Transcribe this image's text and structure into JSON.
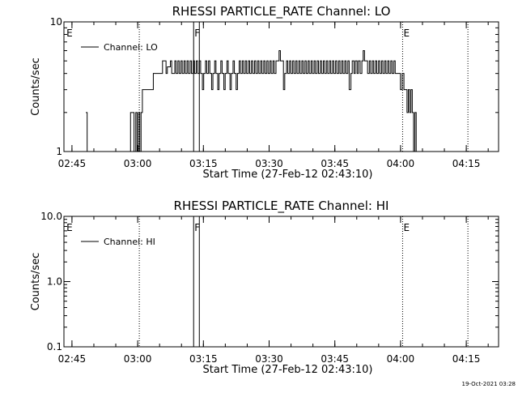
{
  "footer": {
    "timestamp": "19-Oct-2021 03:28"
  },
  "chart_data": [
    {
      "type": "line",
      "title": "RHESSI PARTICLE_RATE Channel: LO",
      "xlabel": "Start Time (27-Feb-12 02:43:10)",
      "ylabel": "Counts/sec",
      "yscale": "log",
      "ylim": [
        1,
        10
      ],
      "xlim_minutes": [
        0,
        99.2
      ],
      "x_ticks": [
        {
          "t": 1.83,
          "label": "02:45"
        },
        {
          "t": 16.83,
          "label": "03:00"
        },
        {
          "t": 31.83,
          "label": "03:15"
        },
        {
          "t": 46.83,
          "label": "03:30"
        },
        {
          "t": 61.83,
          "label": "03:45"
        },
        {
          "t": 76.83,
          "label": "04:00"
        },
        {
          "t": 91.83,
          "label": "04:15"
        }
      ],
      "y_ticks": [
        {
          "v": 1,
          "label": "1"
        },
        {
          "v": 10,
          "label": "10"
        }
      ],
      "legend": {
        "position": "top-left",
        "label": "Channel: LO"
      },
      "markers": [
        {
          "t": 0.4,
          "label": "E",
          "style": "none"
        },
        {
          "t": 17.2,
          "label": "",
          "style": "dotted"
        },
        {
          "t": 29.6,
          "label": "F",
          "style": "solid"
        },
        {
          "t": 30.9,
          "label": "",
          "style": "solid"
        },
        {
          "t": 77.3,
          "label": "E",
          "style": "dotted"
        },
        {
          "t": 92.2,
          "label": "",
          "style": "dotted"
        }
      ],
      "series": [
        {
          "name": "Channel: LO",
          "points": [
            [
              5.0,
              2.0
            ],
            [
              5.3,
              1.0
            ],
            [
              14.8,
              1.0
            ],
            [
              15.2,
              2.0
            ],
            [
              16.0,
              1.0
            ],
            [
              16.4,
              2.0
            ],
            [
              16.7,
              1.0
            ],
            [
              17.0,
              2.0
            ],
            [
              17.3,
              1.0
            ],
            [
              17.6,
              2.0
            ],
            [
              17.9,
              3.0
            ],
            [
              20.0,
              3.0
            ],
            [
              20.4,
              4.0
            ],
            [
              22.0,
              4.0
            ],
            [
              22.5,
              5.0
            ],
            [
              23.0,
              5.0
            ],
            [
              23.3,
              4.0
            ],
            [
              23.6,
              4.5
            ],
            [
              24.0,
              4.5
            ],
            [
              24.3,
              5.0
            ],
            [
              24.6,
              4.0
            ],
            [
              25.0,
              4.0
            ],
            [
              25.3,
              5.0
            ],
            [
              25.6,
              4.0
            ],
            [
              26.0,
              5.0
            ],
            [
              26.3,
              4.0
            ],
            [
              26.7,
              5.0
            ],
            [
              27.0,
              4.0
            ],
            [
              27.4,
              5.0
            ],
            [
              27.7,
              4.0
            ],
            [
              28.1,
              5.0
            ],
            [
              28.4,
              4.0
            ],
            [
              28.8,
              5.0
            ],
            [
              29.1,
              4.0
            ],
            [
              29.5,
              5.0
            ],
            [
              29.8,
              4.0
            ],
            [
              30.2,
              5.0
            ],
            [
              30.5,
              4.0
            ],
            [
              30.9,
              5.0
            ],
            [
              31.2,
              4.0
            ],
            [
              31.6,
              3.0
            ],
            [
              31.9,
              4.0
            ],
            [
              32.3,
              5.0
            ],
            [
              32.6,
              4.0
            ],
            [
              33.0,
              5.0
            ],
            [
              33.3,
              4.0
            ],
            [
              33.7,
              3.0
            ],
            [
              34.0,
              4.0
            ],
            [
              34.4,
              5.0
            ],
            [
              34.7,
              4.0
            ],
            [
              35.1,
              3.0
            ],
            [
              35.4,
              4.0
            ],
            [
              35.8,
              5.0
            ],
            [
              36.1,
              4.0
            ],
            [
              36.5,
              3.0
            ],
            [
              36.8,
              4.0
            ],
            [
              37.2,
              5.0
            ],
            [
              37.5,
              4.0
            ],
            [
              37.9,
              3.0
            ],
            [
              38.2,
              4.0
            ],
            [
              38.6,
              5.0
            ],
            [
              38.9,
              4.0
            ],
            [
              39.3,
              3.0
            ],
            [
              39.6,
              4.0
            ],
            [
              40.0,
              5.0
            ],
            [
              40.3,
              4.0
            ],
            [
              40.7,
              5.0
            ],
            [
              41.0,
              4.0
            ],
            [
              41.4,
              5.0
            ],
            [
              41.7,
              4.0
            ],
            [
              42.1,
              5.0
            ],
            [
              42.4,
              4.0
            ],
            [
              42.8,
              5.0
            ],
            [
              43.1,
              4.0
            ],
            [
              43.5,
              5.0
            ],
            [
              43.8,
              4.0
            ],
            [
              44.2,
              5.0
            ],
            [
              44.5,
              4.0
            ],
            [
              44.9,
              5.0
            ],
            [
              45.2,
              4.0
            ],
            [
              45.6,
              5.0
            ],
            [
              45.9,
              4.0
            ],
            [
              46.3,
              5.0
            ],
            [
              46.6,
              4.0
            ],
            [
              47.0,
              5.0
            ],
            [
              47.3,
              4.0
            ],
            [
              47.7,
              5.0
            ],
            [
              48.0,
              4.0
            ],
            [
              48.4,
              5.0
            ],
            [
              48.7,
              5.0
            ],
            [
              49.1,
              6.0
            ],
            [
              49.4,
              5.0
            ],
            [
              49.8,
              5.0
            ],
            [
              50.1,
              3.0
            ],
            [
              50.4,
              4.0
            ],
            [
              50.8,
              5.0
            ],
            [
              51.1,
              4.0
            ],
            [
              51.5,
              5.0
            ],
            [
              51.8,
              4.0
            ],
            [
              52.2,
              5.0
            ],
            [
              52.5,
              4.0
            ],
            [
              52.9,
              5.0
            ],
            [
              53.2,
              4.0
            ],
            [
              53.6,
              5.0
            ],
            [
              53.9,
              4.0
            ],
            [
              54.3,
              5.0
            ],
            [
              54.6,
              4.0
            ],
            [
              55.0,
              5.0
            ],
            [
              55.3,
              4.0
            ],
            [
              55.7,
              5.0
            ],
            [
              56.0,
              4.0
            ],
            [
              56.4,
              5.0
            ],
            [
              56.7,
              4.0
            ],
            [
              57.1,
              5.0
            ],
            [
              57.4,
              4.0
            ],
            [
              57.8,
              5.0
            ],
            [
              58.1,
              4.0
            ],
            [
              58.5,
              5.0
            ],
            [
              58.8,
              4.0
            ],
            [
              59.2,
              5.0
            ],
            [
              59.5,
              4.0
            ],
            [
              59.9,
              5.0
            ],
            [
              60.2,
              4.0
            ],
            [
              60.6,
              5.0
            ],
            [
              60.9,
              4.0
            ],
            [
              61.3,
              5.0
            ],
            [
              61.6,
              4.0
            ],
            [
              62.0,
              5.0
            ],
            [
              62.3,
              4.0
            ],
            [
              62.7,
              5.0
            ],
            [
              63.0,
              4.0
            ],
            [
              63.4,
              5.0
            ],
            [
              63.7,
              4.0
            ],
            [
              64.1,
              5.0
            ],
            [
              64.4,
              4.0
            ],
            [
              64.8,
              5.0
            ],
            [
              65.1,
              3.0
            ],
            [
              65.5,
              4.0
            ],
            [
              65.8,
              5.0
            ],
            [
              66.2,
              4.0
            ],
            [
              66.5,
              5.0
            ],
            [
              66.9,
              4.0
            ],
            [
              67.2,
              5.0
            ],
            [
              67.6,
              4.0
            ],
            [
              68.0,
              5.0
            ],
            [
              68.3,
              6.0
            ],
            [
              68.6,
              5.0
            ],
            [
              69.0,
              5.0
            ],
            [
              69.3,
              4.0
            ],
            [
              69.7,
              5.0
            ],
            [
              70.0,
              4.0
            ],
            [
              70.4,
              5.0
            ],
            [
              70.7,
              4.0
            ],
            [
              71.1,
              5.0
            ],
            [
              71.4,
              4.0
            ],
            [
              71.8,
              5.0
            ],
            [
              72.1,
              4.0
            ],
            [
              72.5,
              5.0
            ],
            [
              72.8,
              4.0
            ],
            [
              73.2,
              5.0
            ],
            [
              73.5,
              4.0
            ],
            [
              73.9,
              5.0
            ],
            [
              74.2,
              4.0
            ],
            [
              74.6,
              5.0
            ],
            [
              74.9,
              4.0
            ],
            [
              75.3,
              5.0
            ],
            [
              75.6,
              4.0
            ],
            [
              76.0,
              4.0
            ],
            [
              76.4,
              4.0
            ],
            [
              76.8,
              3.0
            ],
            [
              77.2,
              4.0
            ],
            [
              77.6,
              3.0
            ],
            [
              78.0,
              3.0
            ],
            [
              78.3,
              2.0
            ],
            [
              78.6,
              3.0
            ],
            [
              78.9,
              2.0
            ],
            [
              79.2,
              3.0
            ],
            [
              79.5,
              2.0
            ],
            [
              79.8,
              1.0
            ],
            [
              80.1,
              2.0
            ],
            [
              80.4,
              1.0
            ]
          ]
        }
      ]
    },
    {
      "type": "line",
      "title": "RHESSI PARTICLE_RATE Channel: HI",
      "xlabel": "Start Time (27-Feb-12 02:43:10)",
      "ylabel": "Counts/sec",
      "yscale": "log",
      "ylim": [
        0.1,
        10
      ],
      "xlim_minutes": [
        0,
        99.2
      ],
      "x_ticks": [
        {
          "t": 1.83,
          "label": "02:45"
        },
        {
          "t": 16.83,
          "label": "03:00"
        },
        {
          "t": 31.83,
          "label": "03:15"
        },
        {
          "t": 46.83,
          "label": "03:30"
        },
        {
          "t": 61.83,
          "label": "03:45"
        },
        {
          "t": 76.83,
          "label": "04:00"
        },
        {
          "t": 91.83,
          "label": "04:15"
        }
      ],
      "y_ticks": [
        {
          "v": 0.1,
          "label": "0.1"
        },
        {
          "v": 1,
          "label": "1.0"
        },
        {
          "v": 10,
          "label": "10.0"
        }
      ],
      "legend": {
        "position": "top-left",
        "label": "Channel: HI"
      },
      "markers": [
        {
          "t": 0.4,
          "label": "E",
          "style": "none"
        },
        {
          "t": 17.2,
          "label": "",
          "style": "dotted"
        },
        {
          "t": 29.6,
          "label": "F",
          "style": "solid"
        },
        {
          "t": 30.9,
          "label": "",
          "style": "solid"
        },
        {
          "t": 77.3,
          "label": "E",
          "style": "dotted"
        },
        {
          "t": 92.2,
          "label": "",
          "style": "dotted"
        }
      ],
      "series": [
        {
          "name": "Channel: HI",
          "points": []
        }
      ]
    }
  ]
}
